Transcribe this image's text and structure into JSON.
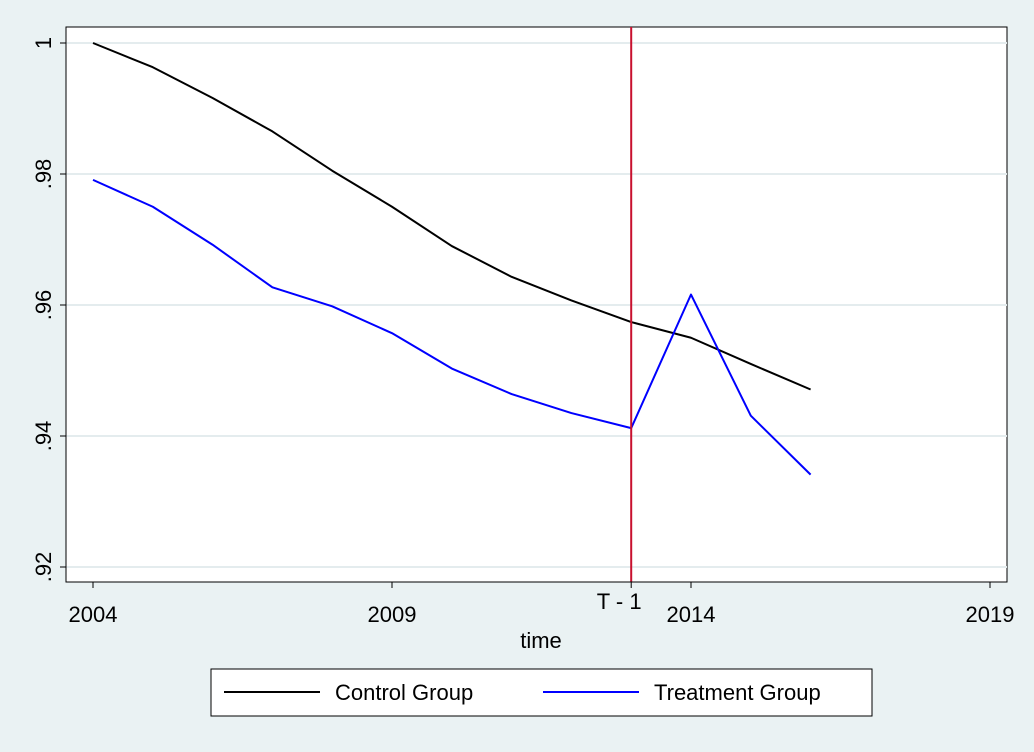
{
  "chart_data": {
    "type": "line",
    "title": "",
    "xlabel": "time",
    "ylabel": "",
    "xlim": [
      2004,
      2019
    ],
    "ylim": [
      0.92,
      1.0
    ],
    "x_ticks": [
      2004,
      2009,
      2014,
      2019
    ],
    "x_tick_labels": [
      "2004",
      "2009",
      "2014",
      "2019"
    ],
    "y_ticks": [
      0.92,
      0.94,
      0.96,
      0.98,
      1.0
    ],
    "y_tick_labels": [
      ".92",
      ".94",
      ".96",
      ".98",
      "1"
    ],
    "grid": true,
    "legend_position": "bottom",
    "vline": {
      "x": 2013,
      "label": "T - 1",
      "color": "#c8102e"
    },
    "series": [
      {
        "name": "Control Group",
        "color": "#000000",
        "x": [
          2004,
          2005,
          2006,
          2007,
          2008,
          2009,
          2010,
          2011,
          2012,
          2013,
          2014,
          2015,
          2016
        ],
        "y": [
          1.0,
          0.9963,
          0.9916,
          0.9865,
          0.9805,
          0.975,
          0.969,
          0.9643,
          0.9607,
          0.9574,
          0.955,
          0.951,
          0.9471
        ]
      },
      {
        "name": "Treatment Group",
        "color": "#0000ff",
        "x": [
          2004,
          2005,
          2006,
          2007,
          2008,
          2009,
          2010,
          2011,
          2012,
          2013,
          2014,
          2015,
          2016
        ],
        "y": [
          0.9791,
          0.975,
          0.9692,
          0.9627,
          0.9598,
          0.9557,
          0.9503,
          0.9464,
          0.9435,
          0.9412,
          0.9616,
          0.9431,
          0.9341
        ]
      }
    ]
  }
}
